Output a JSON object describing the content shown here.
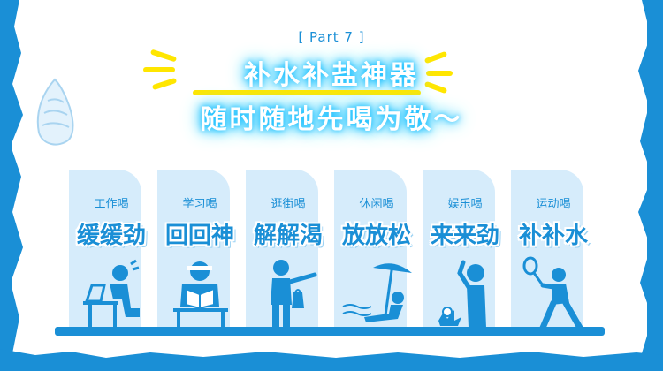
{
  "header": {
    "part_tag": "[ Part 7 ]",
    "title_line1": "补水补盐神器",
    "title_line2": "随时随地先喝为敬～"
  },
  "cards": [
    {
      "label": "工作喝",
      "big": "缓缓劲",
      "figure": "person-at-laptop-icon"
    },
    {
      "label": "学习喝",
      "big": "回回神",
      "figure": "person-studying-icon"
    },
    {
      "label": "逛街喝",
      "big": "解解渴",
      "figure": "person-shopping-icon"
    },
    {
      "label": "休闲喝",
      "big": "放放松",
      "figure": "person-at-beach-icon"
    },
    {
      "label": "娱乐喝",
      "big": "来来劲",
      "figure": "person-playing-ball-icon"
    },
    {
      "label": "运动喝",
      "big": "补补水",
      "figure": "person-tennis-icon"
    }
  ],
  "colors": {
    "brand_blue": "#1a8fd6",
    "card_bg": "#d6ecfb",
    "accent_yellow": "#ffe600",
    "glow": "#1fc0ff"
  }
}
